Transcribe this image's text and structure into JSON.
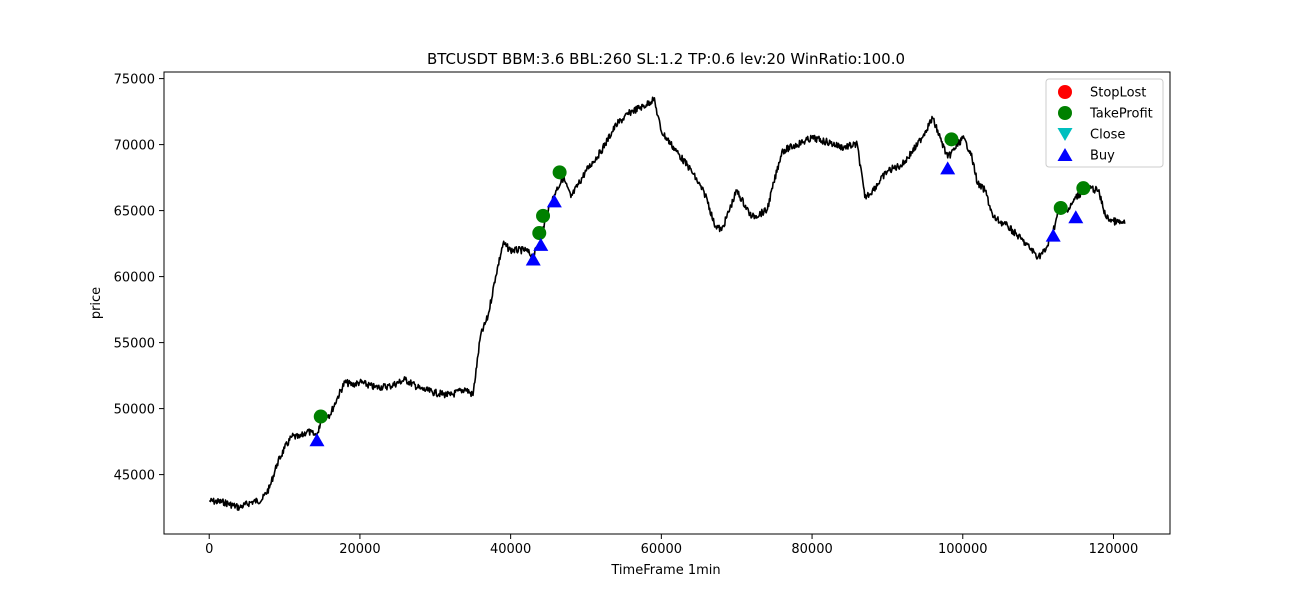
{
  "chart_data": {
    "type": "line",
    "title": "BTCUSDT BBM:3.6 BBL:260 SL:1.2 TP:0.6 lev:20 WinRatio:100.0",
    "xlabel": "TimeFrame 1min",
    "ylabel": "price",
    "xlim": [
      -6000,
      127500
    ],
    "ylim": [
      40500,
      75500
    ],
    "xticks": [
      0,
      20000,
      40000,
      60000,
      80000,
      100000,
      120000
    ],
    "yticks": [
      45000,
      50000,
      55000,
      60000,
      65000,
      70000,
      75000
    ],
    "grid": false,
    "legend_position": "top-right",
    "price_series": {
      "name": "price",
      "color": "#000000",
      "x": [
        0,
        2000,
        4000,
        5500,
        7000,
        8000,
        9000,
        10000,
        11000,
        12000,
        13000,
        14000,
        14500,
        15000,
        16000,
        17000,
        18000,
        19000,
        20000,
        22000,
        24000,
        26000,
        28000,
        30000,
        32000,
        34000,
        35000,
        36000,
        37000,
        38000,
        39000,
        40000,
        42000,
        43000,
        44000,
        45000,
        46000,
        47000,
        48000,
        50000,
        52000,
        54000,
        56000,
        58000,
        59000,
        60000,
        62000,
        64000,
        66000,
        67000,
        68000,
        70000,
        72000,
        74000,
        76000,
        78000,
        80000,
        82000,
        84000,
        86000,
        87000,
        88000,
        90000,
        92000,
        94000,
        96000,
        97000,
        98000,
        100000,
        101000,
        102000,
        103000,
        104000,
        106000,
        108000,
        110000,
        111000,
        112000,
        113000,
        114000,
        115000,
        116000,
        117000,
        118000,
        119000,
        120000,
        121500
      ],
      "y": [
        43000,
        42900,
        42500,
        42900,
        43100,
        44000,
        45800,
        47000,
        47900,
        47800,
        48300,
        48000,
        48200,
        49800,
        49500,
        50800,
        52000,
        51800,
        52000,
        51600,
        51700,
        52200,
        51500,
        51200,
        51000,
        51500,
        51000,
        55500,
        57000,
        60000,
        62500,
        62000,
        62000,
        61500,
        63000,
        65000,
        66500,
        67500,
        66000,
        68000,
        69500,
        71500,
        72500,
        73000,
        73500,
        71000,
        69500,
        68000,
        66000,
        64000,
        63500,
        66500,
        64500,
        65000,
        69500,
        70000,
        70500,
        70200,
        69800,
        70000,
        66000,
        66500,
        68000,
        68500,
        70000,
        72000,
        70500,
        69000,
        70500,
        69500,
        67000,
        66500,
        64500,
        63800,
        62700,
        61500,
        62000,
        63500,
        65500,
        65000,
        66000,
        66500,
        66700,
        66500,
        64500,
        64200,
        64000
      ]
    },
    "markers": [
      {
        "name": "StopLost",
        "shape": "circle",
        "color": "#ff0000",
        "x": [],
        "y": []
      },
      {
        "name": "TakeProfit",
        "shape": "circle",
        "color": "#008000",
        "x": [
          14800,
          43800,
          44300,
          46500,
          98500,
          113000,
          116000
        ],
        "y": [
          49400,
          63300,
          64600,
          67900,
          70400,
          65200,
          66700
        ]
      },
      {
        "name": "Close",
        "shape": "triangle-down",
        "color": "#00bfbf",
        "x": [],
        "y": []
      },
      {
        "name": "Buy",
        "shape": "triangle-up",
        "color": "#0000ff",
        "x": [
          14300,
          43000,
          44000,
          45800,
          98000,
          112000,
          115000
        ],
        "y": [
          47600,
          61300,
          62400,
          65700,
          68200,
          63100,
          64500
        ]
      }
    ]
  }
}
